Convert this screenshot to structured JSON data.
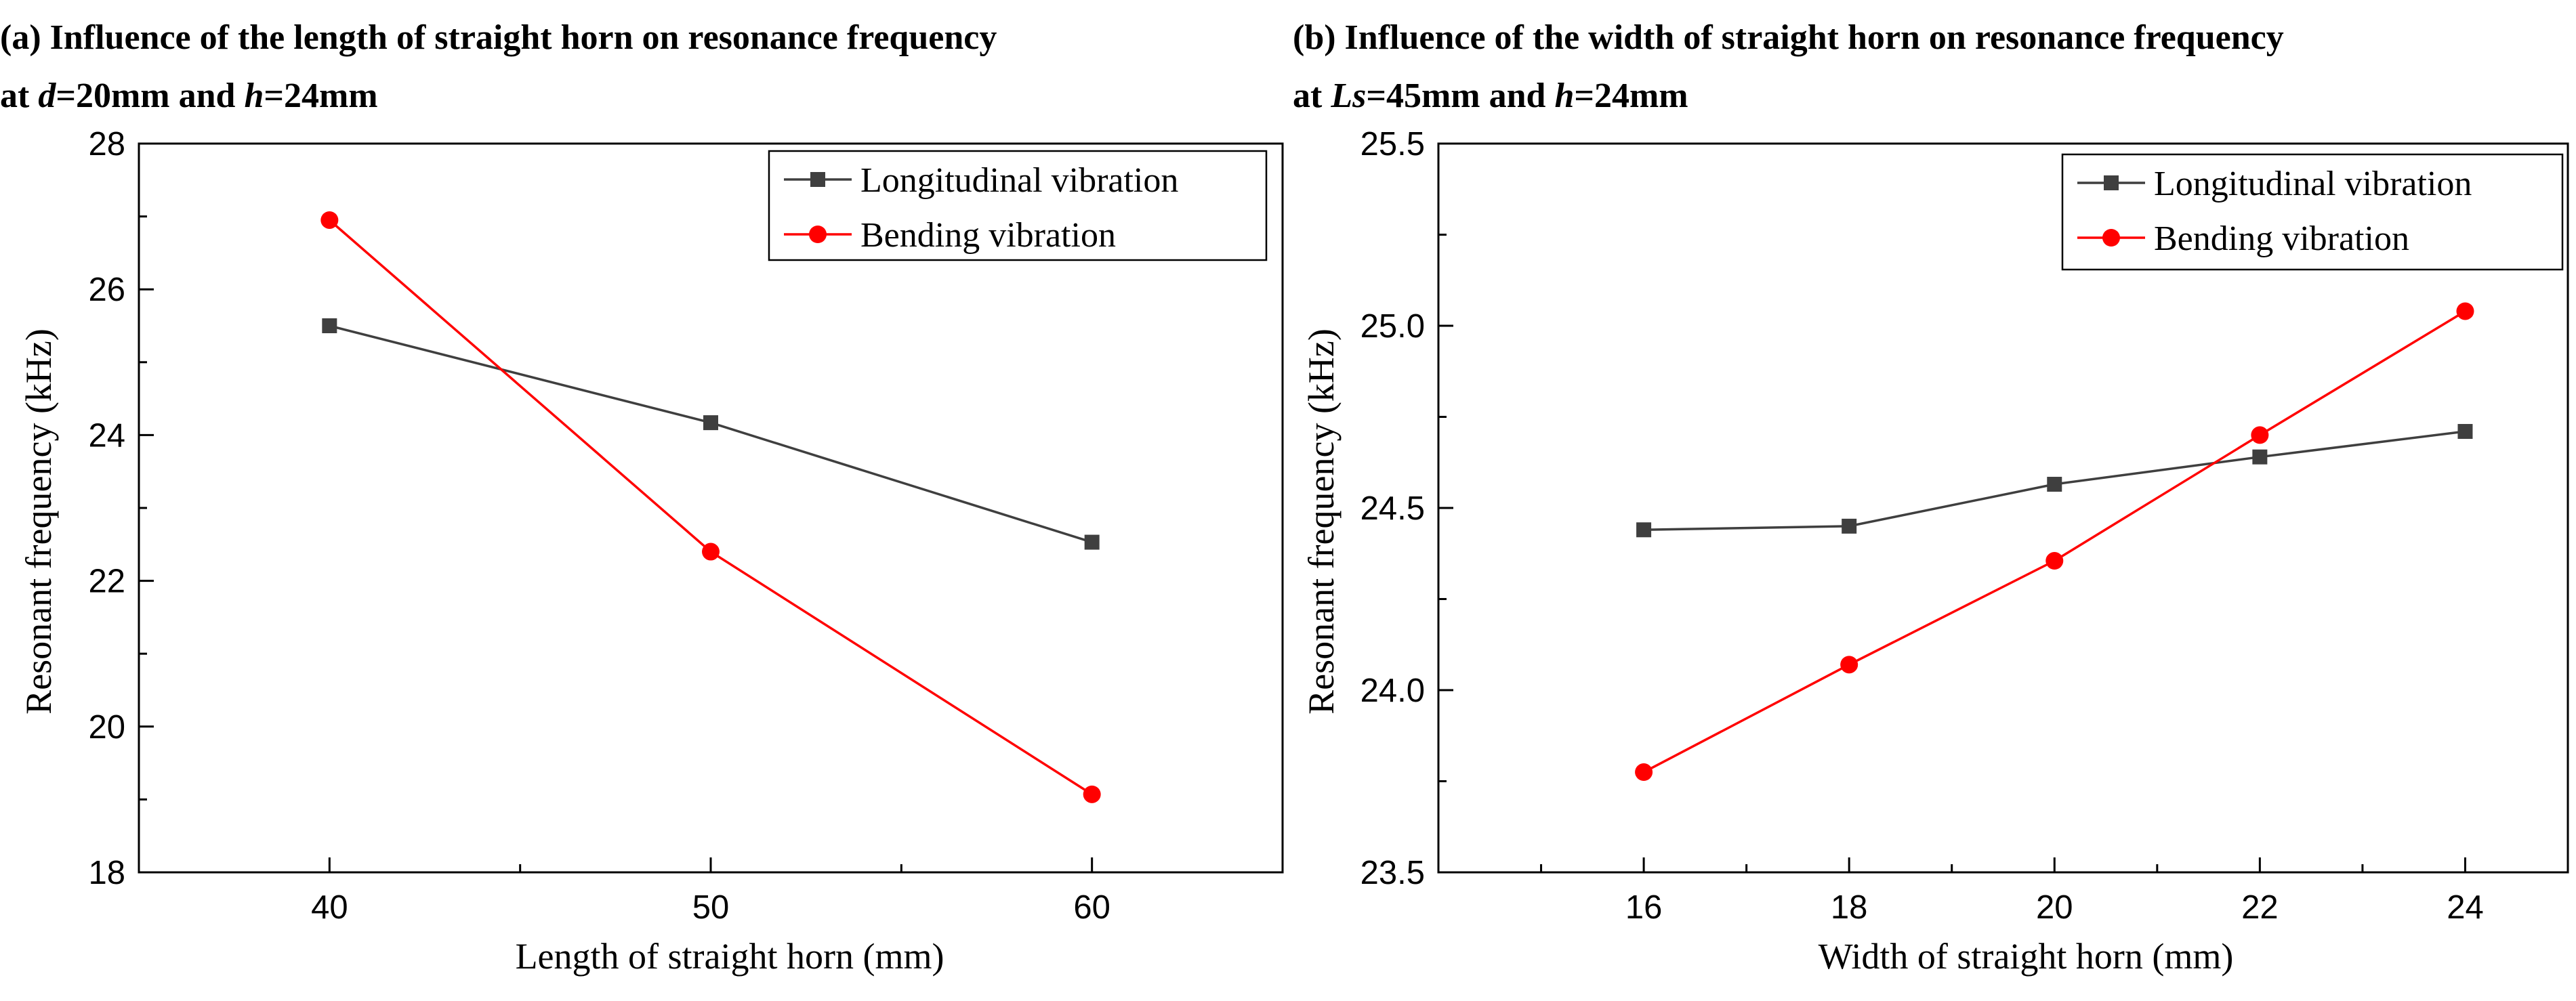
{
  "chart_data": [
    {
      "type": "line",
      "title": "(a) Influence of the length of straight horn on resonance frequency",
      "subtitle_parts": [
        "at ",
        "d",
        "=20mm and ",
        "h",
        "=24mm"
      ],
      "xlabel": "Length of straight horn (mm)",
      "ylabel": "Resonant frequency (kHz)",
      "xlim": [
        35,
        65
      ],
      "ylim": [
        18,
        28
      ],
      "xticks": [
        40,
        50,
        60
      ],
      "xtick_labels": [
        "40",
        "50",
        "60"
      ],
      "yticks": [
        18,
        20,
        22,
        24,
        26,
        28
      ],
      "ytick_labels": [
        "18",
        "20",
        "22",
        "24",
        "26",
        "28"
      ],
      "grid": false,
      "legend_position": "top-right",
      "series": [
        {
          "name": "Longitudinal vibration",
          "marker": "square",
          "color": "#3f3f3f",
          "x": [
            40,
            50,
            60
          ],
          "y": [
            25.5,
            24.17,
            22.53
          ]
        },
        {
          "name": "Bending vibration",
          "marker": "circle",
          "color": "#ff0000",
          "x": [
            40,
            50,
            60
          ],
          "y": [
            26.95,
            22.4,
            19.07
          ]
        }
      ]
    },
    {
      "type": "line",
      "title": "(b) Influence of the width of straight horn on resonance frequency",
      "subtitle_parts": [
        "at ",
        "Ls",
        "=45mm and ",
        "h",
        "=24mm"
      ],
      "xlabel": "Width of straight horn (mm)",
      "ylabel": "Resonant frequency (kHz)",
      "xlim": [
        14,
        25
      ],
      "ylim": [
        23.5,
        25.5
      ],
      "xticks": [
        16,
        18,
        20,
        22,
        24
      ],
      "xtick_labels": [
        "16",
        "18",
        "20",
        "22",
        "24"
      ],
      "yticks": [
        23.5,
        24.0,
        24.5,
        25.0,
        25.5
      ],
      "ytick_labels": [
        "23.5",
        "24.0",
        "24.5",
        "25.0",
        "25.5"
      ],
      "grid": false,
      "legend_position": "top-right",
      "series": [
        {
          "name": "Longitudinal vibration",
          "marker": "square",
          "color": "#3f3f3f",
          "x": [
            16,
            18,
            20,
            22,
            24
          ],
          "y": [
            24.44,
            24.45,
            24.565,
            24.64,
            24.71
          ]
        },
        {
          "name": "Bending vibration",
          "marker": "circle",
          "color": "#ff0000",
          "x": [
            16,
            18,
            20,
            22,
            24
          ],
          "y": [
            23.775,
            24.07,
            24.355,
            24.7,
            25.04
          ]
        }
      ]
    }
  ]
}
